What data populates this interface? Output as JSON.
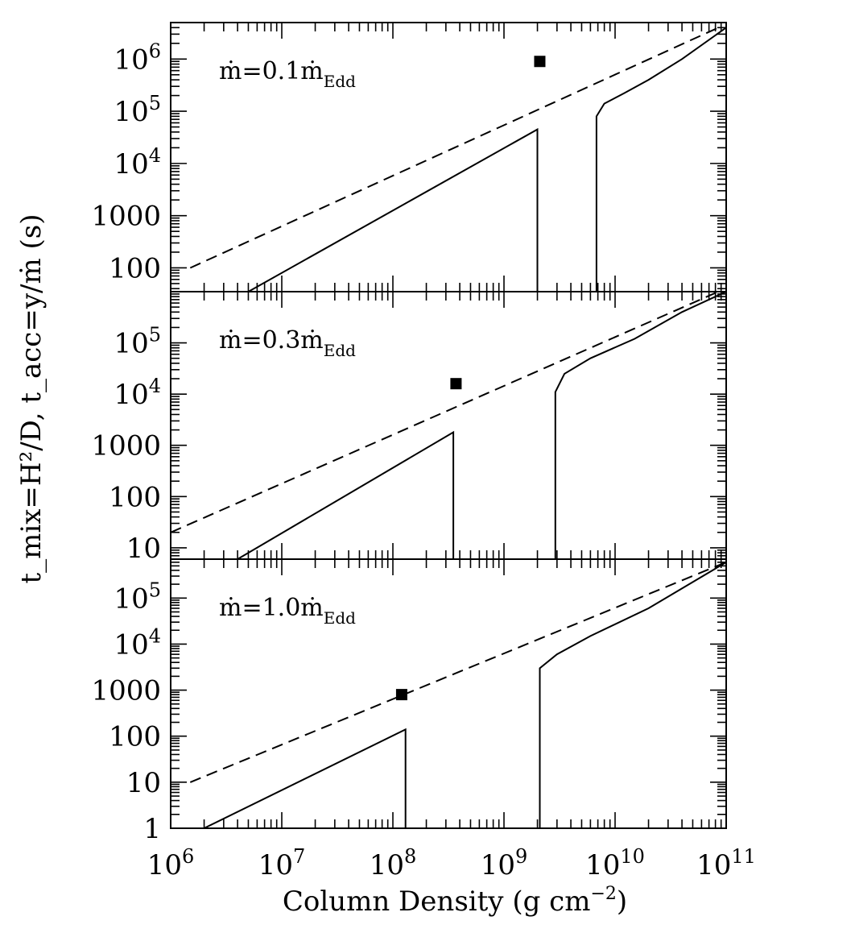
{
  "chart_data": [
    {
      "type": "line",
      "log_x": true,
      "log_y": true,
      "xlim": [
        1000000,
        100000000000
      ],
      "ylim": [
        35,
        5000000
      ],
      "yticks": [
        100,
        1000,
        10000,
        100000,
        1000000
      ],
      "ytick_labels": [
        {
          "base": "",
          "exp": "",
          "text": "100"
        },
        {
          "base": "",
          "exp": "",
          "text": "1000"
        },
        {
          "base": "10",
          "exp": "4",
          "text": ""
        },
        {
          "base": "10",
          "exp": "5",
          "text": ""
        },
        {
          "base": "10",
          "exp": "6",
          "text": ""
        }
      ],
      "annotation": {
        "prefix": "ṁ=0.1ṁ",
        "sub": "Edd"
      },
      "series": [
        {
          "style": "dashed",
          "x": [
            1500000,
            85000000000
          ],
          "y": [
            100,
            4000000
          ]
        },
        {
          "style": "solid",
          "x": [
            5000000,
            2000000000,
            2000000000
          ],
          "y": [
            35,
            45000,
            35
          ]
        },
        {
          "style": "solid",
          "x": [
            6800000000,
            6800000000,
            8000000000,
            12000000000,
            20000000000,
            40000000000,
            100000000000
          ],
          "y": [
            35,
            80000,
            140000,
            220000,
            400000,
            1000000,
            4000000
          ]
        }
      ],
      "points": [
        {
          "x": 2100000000,
          "y": 900000
        }
      ]
    },
    {
      "type": "line",
      "log_x": true,
      "log_y": true,
      "xlim": [
        1000000,
        100000000000
      ],
      "ylim": [
        6,
        1000000
      ],
      "yticks": [
        10,
        100,
        1000,
        10000,
        100000
      ],
      "ytick_labels": [
        {
          "base": "",
          "exp": "",
          "text": "10"
        },
        {
          "base": "",
          "exp": "",
          "text": "100"
        },
        {
          "base": "",
          "exp": "",
          "text": "1000"
        },
        {
          "base": "10",
          "exp": "4",
          "text": ""
        },
        {
          "base": "10",
          "exp": "5",
          "text": ""
        }
      ],
      "annotation": {
        "prefix": "ṁ=0.3ṁ",
        "sub": "Edd"
      },
      "series": [
        {
          "style": "dashed",
          "x": [
            1000000,
            85000000000
          ],
          "y": [
            20,
            1000000
          ]
        },
        {
          "style": "solid",
          "x": [
            4000000,
            350000000,
            350000000
          ],
          "y": [
            6,
            1800,
            6
          ]
        },
        {
          "style": "solid",
          "x": [
            2900000000,
            2900000000,
            3500000000,
            6000000000,
            15000000000,
            40000000000,
            100000000000
          ],
          "y": [
            6,
            11000,
            25000,
            50000,
            120000,
            400000,
            1000000
          ]
        }
      ],
      "points": [
        {
          "x": 370000000,
          "y": 16000
        }
      ]
    },
    {
      "type": "line",
      "log_x": true,
      "log_y": true,
      "xlim": [
        1000000,
        100000000000
      ],
      "ylim": [
        1,
        700000
      ],
      "yticks": [
        1,
        10,
        100,
        1000,
        10000,
        100000
      ],
      "ytick_labels": [
        {
          "base": "",
          "exp": "",
          "text": "1"
        },
        {
          "base": "",
          "exp": "",
          "text": "10"
        },
        {
          "base": "",
          "exp": "",
          "text": "100"
        },
        {
          "base": "",
          "exp": "",
          "text": "1000"
        },
        {
          "base": "10",
          "exp": "4",
          "text": ""
        },
        {
          "base": "10",
          "exp": "5",
          "text": ""
        }
      ],
      "annotation": {
        "prefix": "ṁ=1.0ṁ",
        "sub": "Edd"
      },
      "series": [
        {
          "style": "dashed",
          "x": [
            1500000,
            100000000000
          ],
          "y": [
            10,
            600000
          ]
        },
        {
          "style": "solid",
          "x": [
            2000000,
            130000000,
            130000000
          ],
          "y": [
            1,
            140,
            1
          ]
        },
        {
          "style": "solid",
          "x": [
            2100000000,
            2100000000,
            3000000000,
            6000000000,
            20000000000,
            100000000000
          ],
          "y": [
            1,
            3000,
            6000,
            15000,
            60000,
            600000
          ]
        }
      ],
      "points": [
        {
          "x": 120000000,
          "y": 800
        }
      ]
    }
  ],
  "x_tick_labels": [
    {
      "base": "10",
      "exp": "6"
    },
    {
      "base": "10",
      "exp": "7"
    },
    {
      "base": "10",
      "exp": "8"
    },
    {
      "base": "10",
      "exp": "9"
    },
    {
      "base": "10",
      "exp": "10"
    },
    {
      "base": "10",
      "exp": "11"
    }
  ],
  "x_axis_title": "Column Density (g cm",
  "x_axis_title_exp": "−2",
  "x_axis_title_end": ")",
  "y_axis_title": "t_mix=H²/D, t_acc=y/ṁ (s)",
  "colors": {
    "ink": "#000000",
    "background": "#ffffff"
  }
}
